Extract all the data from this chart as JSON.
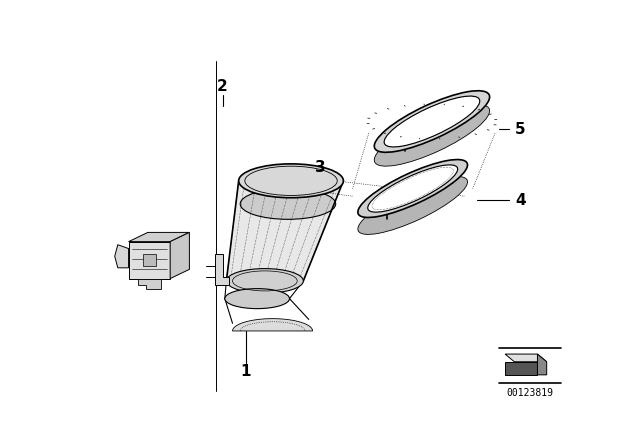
{
  "background_color": "#ffffff",
  "line_color": "#000000",
  "diagram_id": "00123819",
  "fig_width": 6.4,
  "fig_height": 4.48,
  "dpi": 100,
  "body_tilt_deg": 25,
  "label_1": "1",
  "label_2": "2",
  "label_3": "3",
  "label_4": "4",
  "label_5": "5"
}
